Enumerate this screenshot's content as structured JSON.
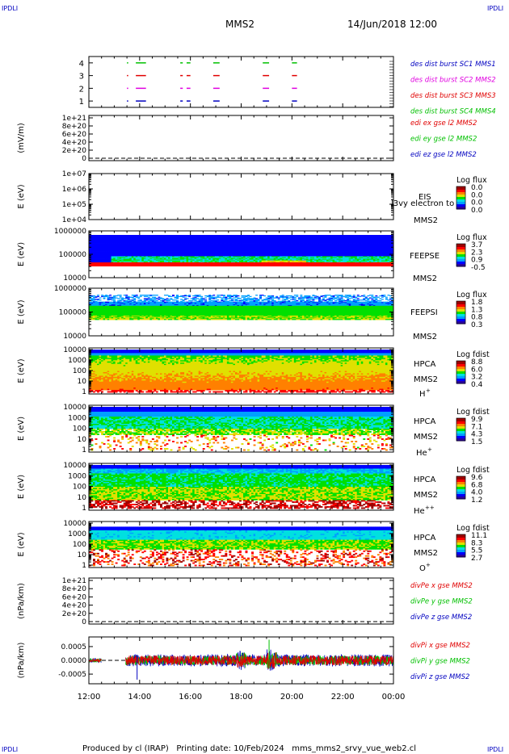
{
  "corner_label": "IPDLI",
  "header": {
    "spacecraft": "MMS2",
    "date_time": "14/Jun/2018 12:00"
  },
  "footer": {
    "text": "Produced by cl (IRAP)   Printing date: 10/Feb/2024   mms_mms2_srvy_vue_web2.cl"
  },
  "colors": {
    "red": "#e00000",
    "green": "#00c000",
    "blue": "#0000c0",
    "magenta": "#e000e0",
    "colormap": [
      "#2a00a0",
      "#0000ff",
      "#00a0ff",
      "#00e0e0",
      "#00e000",
      "#e0e000",
      "#ff8000",
      "#ff0000",
      "#a00000"
    ]
  },
  "chart_data": [
    {
      "type": "scatter",
      "id": "burst",
      "y_ticks": [
        "1",
        "2",
        "3",
        "4"
      ],
      "ylim": [
        0.5,
        4.5
      ],
      "legend": [
        {
          "name": "des dist burst SC1 MMS1",
          "color": "#0000c0"
        },
        {
          "name": "des dist burst SC2 MMS2",
          "color": "#e000e0"
        },
        {
          "name": "des dist burst SC3 MMS3",
          "color": "#e00000"
        },
        {
          "name": "des dist burst SC4 MMS4",
          "color": "#00c000"
        }
      ],
      "intervals_hours": [
        [
          13.5,
          13.55
        ],
        [
          13.85,
          14.25
        ],
        [
          15.6,
          15.7
        ],
        [
          15.85,
          16.0
        ],
        [
          16.9,
          17.15
        ],
        [
          18.85,
          19.1
        ],
        [
          20.0,
          20.2
        ]
      ]
    },
    {
      "type": "line",
      "id": "edi",
      "ylabel": "(mV/m)",
      "y_ticks": [
        "0",
        "2e+20",
        "4e+20",
        "6e+20",
        "8e+20",
        "1e+21"
      ],
      "ylim": [
        0,
        1e+21
      ],
      "legend": [
        {
          "name": "edi ex gse l2 MMS2",
          "color": "#e00000"
        },
        {
          "name": "edi ey gse l2 MMS2",
          "color": "#00c000"
        },
        {
          "name": "edi ez gse l2 MMS2",
          "color": "#0000c0"
        }
      ]
    },
    {
      "type": "heatmap",
      "id": "eis",
      "ylabel": "E (eV)",
      "y_ticks": [
        "1e+04",
        "1e+05",
        "1e+06",
        "1e+07"
      ],
      "log": true,
      "instrument": [
        "EIS",
        "MMS2"
      ],
      "overlay_label": "l3vy electron to",
      "colorbar": {
        "title": "Log flux",
        "ticks": [
          "0.0",
          "0.0",
          "0.0",
          "0.0"
        ]
      }
    },
    {
      "type": "heatmap",
      "id": "feepse",
      "ylabel": "E (eV)",
      "y_ticks": [
        "10000",
        "100000",
        "1000000"
      ],
      "log": true,
      "instrument": [
        "FEEPSE",
        "MMS2"
      ],
      "colorbar": {
        "title": "Log flux",
        "ticks": [
          "3.7",
          "2.3",
          "0.9",
          "-0.5"
        ]
      }
    },
    {
      "type": "heatmap",
      "id": "feepsi",
      "ylabel": "E (eV)",
      "y_ticks": [
        "10000",
        "100000",
        "1000000"
      ],
      "log": true,
      "instrument": [
        "FEEPSI",
        "MMS2"
      ],
      "colorbar": {
        "title": "Log flux",
        "ticks": [
          "1.8",
          "1.3",
          "0.8",
          "0.3"
        ]
      }
    },
    {
      "type": "heatmap",
      "id": "hpca_h",
      "ylabel": "E (eV)",
      "y_ticks": [
        "1",
        "10",
        "100",
        "1000",
        "10000"
      ],
      "log": true,
      "instrument": [
        "HPCA",
        "MMS2",
        "H",
        "+"
      ],
      "colorbar": {
        "title": "Log fdist",
        "ticks": [
          "8.8",
          "6.0",
          "3.2",
          "0.4"
        ]
      }
    },
    {
      "type": "heatmap",
      "id": "hpca_he",
      "ylabel": "E (eV)",
      "y_ticks": [
        "1",
        "10",
        "100",
        "1000",
        "10000"
      ],
      "log": true,
      "instrument": [
        "HPCA",
        "MMS2",
        "He",
        "+"
      ],
      "colorbar": {
        "title": "Log fdist",
        "ticks": [
          "9.9",
          "7.1",
          "4.3",
          "1.5"
        ]
      }
    },
    {
      "type": "heatmap",
      "id": "hpca_hepp",
      "ylabel": "E (eV)",
      "y_ticks": [
        "1",
        "10",
        "100",
        "1000",
        "10000"
      ],
      "log": true,
      "instrument": [
        "HPCA",
        "MMS2",
        "He",
        "++"
      ],
      "colorbar": {
        "title": "Log fdist",
        "ticks": [
          "9.6",
          "6.8",
          "4.0",
          "1.2"
        ]
      }
    },
    {
      "type": "heatmap",
      "id": "hpca_o",
      "ylabel": "E (eV)",
      "y_ticks": [
        "1",
        "10",
        "100",
        "1000",
        "10000"
      ],
      "log": true,
      "instrument": [
        "HPCA",
        "MMS2",
        "O",
        "+"
      ],
      "colorbar": {
        "title": "Log fdist",
        "ticks": [
          "11.1",
          "8.3",
          "5.5",
          "2.7"
        ]
      }
    },
    {
      "type": "line",
      "id": "divpe",
      "ylabel": "(nPa/km)",
      "y_ticks": [
        "0",
        "2e+20",
        "4e+20",
        "6e+20",
        "8e+20",
        "1e+21"
      ],
      "ylim": [
        0,
        1e+21
      ],
      "legend": [
        {
          "name": "divPe x gse MMS2",
          "color": "#e00000"
        },
        {
          "name": "divPe y gse MMS2",
          "color": "#00c000"
        },
        {
          "name": "divPe z gse MMS2",
          "color": "#0000c0"
        }
      ]
    },
    {
      "type": "line",
      "id": "divpi",
      "ylabel": "(nPa/km)",
      "y_ticks": [
        "-0.0005",
        "0.0000",
        "0.0005"
      ],
      "ylim": [
        -0.00085,
        0.00085
      ],
      "legend": [
        {
          "name": "divPi x gse MMS2",
          "color": "#e00000"
        },
        {
          "name": "divPi y gse MMS2",
          "color": "#00c000"
        },
        {
          "name": "divPi z gse MMS2",
          "color": "#0000c0"
        }
      ]
    }
  ],
  "x_axis": {
    "ticks": [
      "12:00",
      "14:00",
      "16:00",
      "18:00",
      "20:00",
      "22:00",
      "00:00"
    ],
    "xlim_hours": [
      12,
      24
    ]
  }
}
